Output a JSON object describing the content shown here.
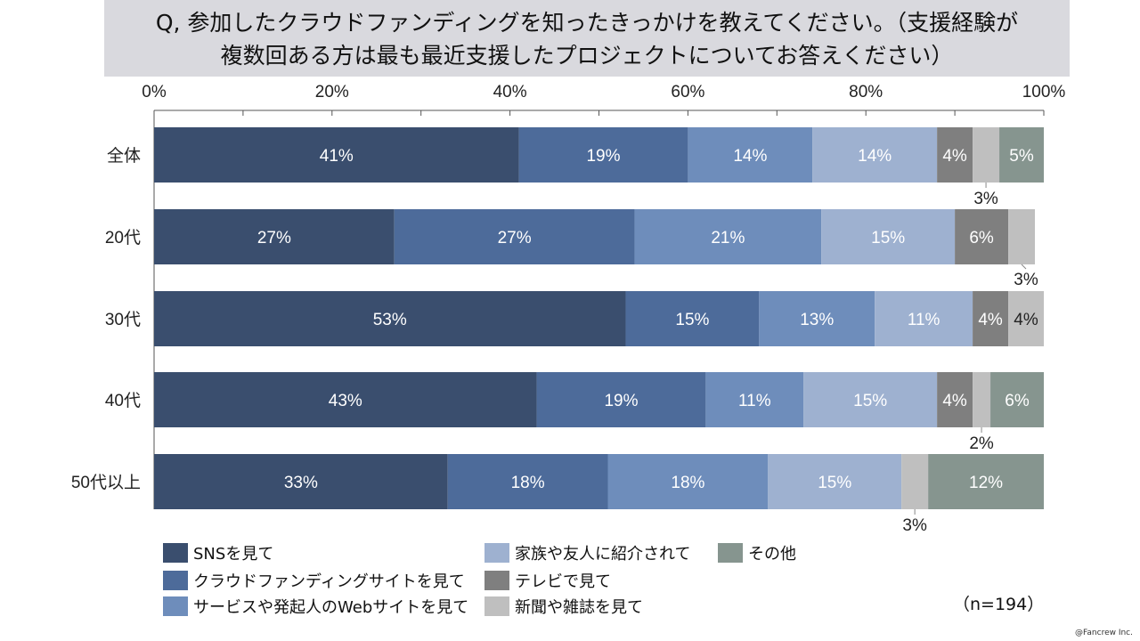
{
  "title": {
    "line1": "Q, 参加したクラウドファンディングを知ったきっかけを教えてください。（支援経験が",
    "line2": "複数回ある方は最も最近支援したプロジェクトについてお答えください）"
  },
  "note": "（n=194）",
  "credit": "@Fancrew Inc.",
  "colors": [
    "#3a4e6e",
    "#4d6b9a",
    "#6e8dbb",
    "#9eb1d0",
    "#7f7f7f",
    "#bfbfbf",
    "#86958f"
  ],
  "chart_data": {
    "type": "bar",
    "orientation": "horizontal",
    "stacked": true,
    "xlim": [
      0,
      100
    ],
    "x_ticks": [
      "0%",
      "20%",
      "40%",
      "60%",
      "80%",
      "100%"
    ],
    "categories": [
      "全体",
      "20代",
      "30代",
      "40代",
      "50代以上"
    ],
    "series": [
      {
        "name": "SNSを見て",
        "values": [
          41,
          27,
          53,
          43,
          33
        ],
        "labels": [
          "41%",
          "27%",
          "53%",
          "43%",
          "33%"
        ]
      },
      {
        "name": "クラウドファンディングサイトを見て",
        "values": [
          19,
          27,
          15,
          19,
          18
        ],
        "labels": [
          "19%",
          "27%",
          "15%",
          "19%",
          "18%"
        ]
      },
      {
        "name": "サービスや発起人のWebサイトを見て",
        "values": [
          14,
          21,
          13,
          11,
          18
        ],
        "labels": [
          "14%",
          "21%",
          "13%",
          "11%",
          "18%"
        ]
      },
      {
        "name": "家族や友人に紹介されて",
        "values": [
          14,
          15,
          11,
          15,
          15
        ],
        "labels": [
          "14%",
          "15%",
          "11%",
          "15%",
          "15%"
        ]
      },
      {
        "name": "テレビで見て",
        "values": [
          4,
          6,
          4,
          4,
          0
        ],
        "labels": [
          "4%",
          "6%",
          "4%",
          "4%",
          ""
        ]
      },
      {
        "name": "新聞や雑誌を見て",
        "values": [
          3,
          3,
          4,
          2,
          3
        ],
        "labels": [
          "3%",
          "3%",
          "4%",
          "2%",
          "3%"
        ]
      },
      {
        "name": "その他",
        "values": [
          5,
          0,
          0,
          6,
          12
        ],
        "labels": [
          "5%",
          "",
          "",
          "6%",
          "12%"
        ]
      }
    ]
  },
  "legend_order": [
    0,
    3,
    6,
    1,
    4,
    2,
    5
  ]
}
